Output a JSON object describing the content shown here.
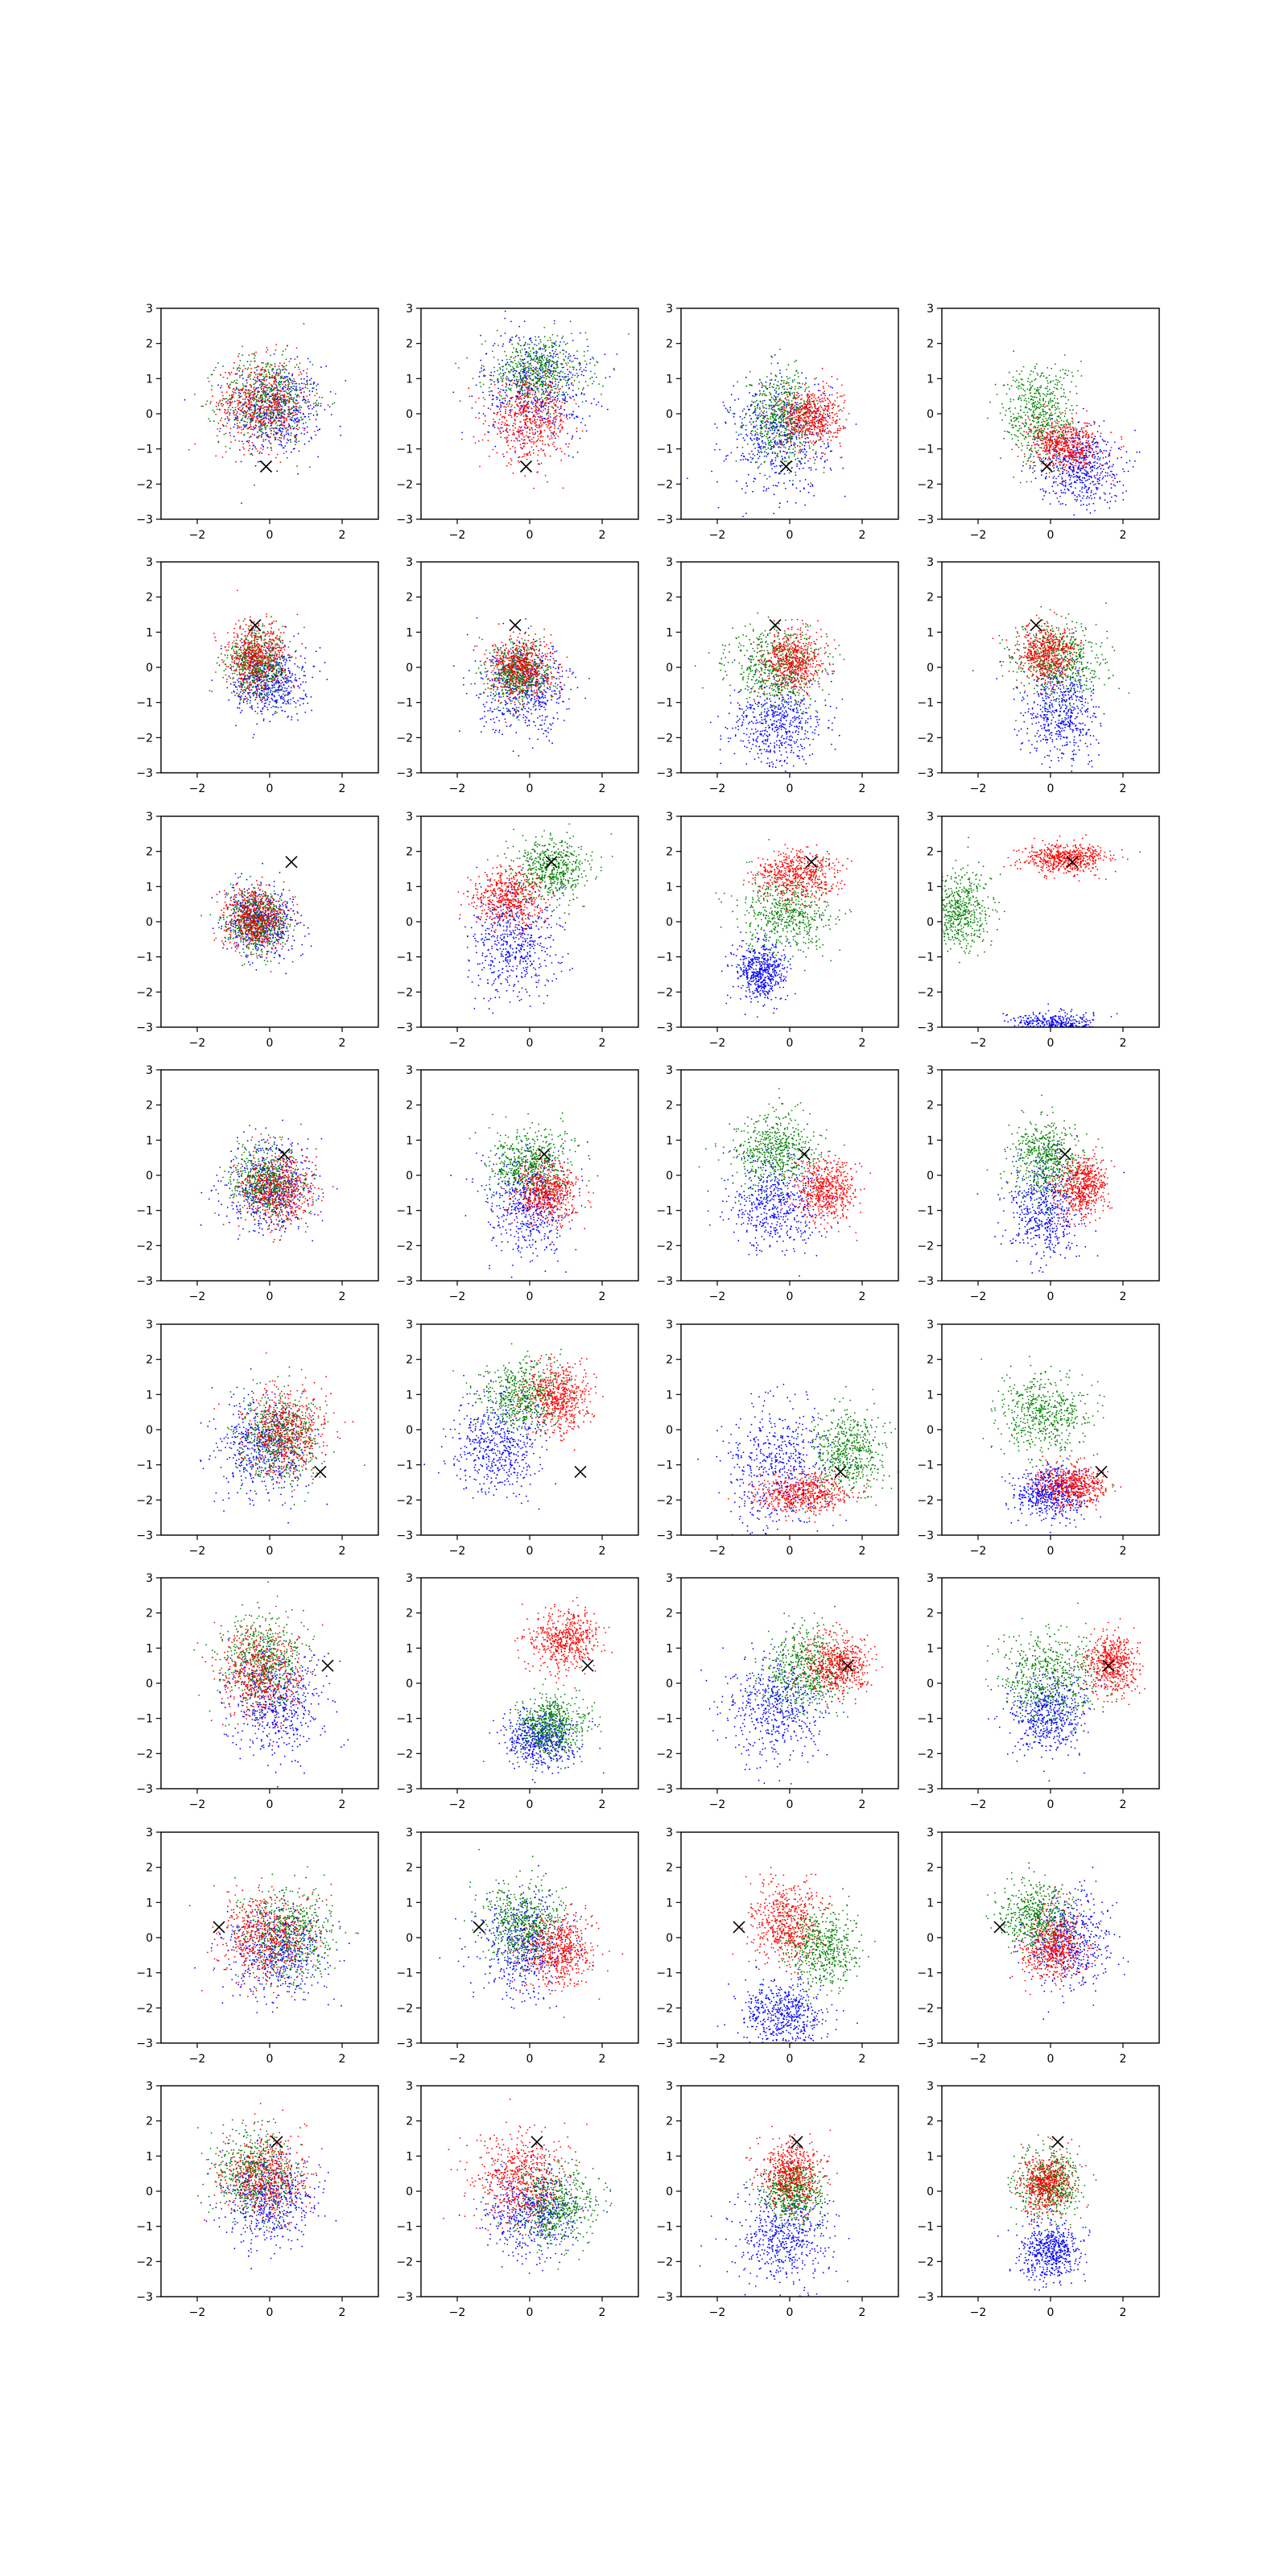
{
  "chart_data": {
    "type": "scatter",
    "layout": {
      "rows": 8,
      "cols": 4
    },
    "xlim": [
      -3,
      3
    ],
    "ylim": [
      -3,
      3
    ],
    "x_ticks": [
      "−2",
      "0",
      "2"
    ],
    "y_ticks": [
      "−3",
      "−2",
      "−1",
      "0",
      "1",
      "2",
      "3"
    ],
    "marker": {
      "symbol": "x",
      "color": "#000000"
    },
    "colors": {
      "blue": "#0000ff",
      "green": "#008000",
      "red": "#ff0000"
    },
    "rows": [
      {
        "marker": [
          -0.1,
          -1.5
        ],
        "panels": [
          {
            "blue": [
              0.2,
              0.1,
              0.9,
              0.9
            ],
            "green": [
              -0.1,
              0.4,
              0.9,
              0.9
            ],
            "red": [
              -0.2,
              0.3,
              0.9,
              0.9
            ]
          },
          {
            "blue": [
              0.2,
              0.8,
              1.1,
              1.1
            ],
            "green": [
              0.2,
              1.2,
              1.0,
              0.7
            ],
            "red": [
              0.0,
              -0.2,
              0.8,
              0.8
            ]
          },
          {
            "blue": [
              -0.3,
              -0.6,
              1.0,
              1.2
            ],
            "green": [
              -0.2,
              -0.1,
              0.7,
              0.9
            ],
            "red": [
              0.6,
              -0.1,
              0.6,
              0.6
            ]
          },
          {
            "blue": [
              0.8,
              -1.5,
              0.8,
              0.8
            ],
            "green": [
              -0.3,
              0.0,
              0.7,
              1.0
            ],
            "red": [
              0.4,
              -0.9,
              0.7,
              0.5
            ]
          }
        ]
      },
      {
        "marker": [
          -0.4,
          1.2
        ],
        "panels": [
          {
            "blue": [
              0.0,
              -0.4,
              0.7,
              0.7
            ],
            "green": [
              -0.3,
              0.1,
              0.6,
              0.7
            ],
            "red": [
              -0.4,
              0.3,
              0.6,
              0.7
            ]
          },
          {
            "blue": [
              -0.1,
              -0.6,
              0.9,
              0.9
            ],
            "green": [
              -0.3,
              -0.2,
              0.6,
              0.6
            ],
            "red": [
              -0.2,
              0.0,
              0.6,
              0.6
            ]
          },
          {
            "blue": [
              -0.3,
              -1.6,
              0.9,
              0.9
            ],
            "green": [
              -0.4,
              0.0,
              0.9,
              0.8
            ],
            "red": [
              0.1,
              0.2,
              0.6,
              0.6
            ]
          },
          {
            "blue": [
              0.3,
              -1.3,
              0.7,
              1.0
            ],
            "green": [
              0.2,
              0.1,
              0.9,
              0.8
            ],
            "red": [
              -0.1,
              0.4,
              0.6,
              0.6
            ]
          }
        ]
      },
      {
        "marker": [
          0.6,
          1.7
        ],
        "panels": [
          {
            "blue": [
              -0.2,
              0.0,
              0.7,
              0.7
            ],
            "green": [
              -0.4,
              0.0,
              0.6,
              0.6
            ],
            "red": [
              -0.4,
              0.1,
              0.6,
              0.6
            ]
          },
          {
            "blue": [
              -0.4,
              -0.6,
              0.9,
              1.1
            ],
            "green": [
              0.6,
              1.5,
              0.7,
              0.6
            ],
            "red": [
              -0.6,
              0.7,
              0.7,
              0.6
            ]
          },
          {
            "blue": [
              -0.8,
              -1.4,
              0.5,
              0.6
            ],
            "green": [
              -0.1,
              0.2,
              0.9,
              0.8
            ],
            "red": [
              0.2,
              1.3,
              0.8,
              0.5
            ]
          },
          {
            "blue": [
              0.0,
              -3.0,
              0.8,
              0.3
            ],
            "green": [
              -2.5,
              0.3,
              0.6,
              0.8
            ],
            "red": [
              0.4,
              1.8,
              0.8,
              0.3
            ]
          }
        ]
      },
      {
        "marker": [
          0.4,
          0.6
        ],
        "panels": [
          {
            "blue": [
              0.0,
              -0.3,
              0.9,
              0.9
            ],
            "green": [
              -0.1,
              -0.2,
              0.7,
              0.7
            ],
            "red": [
              0.2,
              -0.4,
              0.7,
              0.7
            ]
          },
          {
            "blue": [
              0.0,
              -0.8,
              0.8,
              1.0
            ],
            "green": [
              0.0,
              0.3,
              0.8,
              0.7
            ],
            "red": [
              0.5,
              -0.5,
              0.6,
              0.6
            ]
          },
          {
            "blue": [
              -0.4,
              -0.8,
              0.9,
              1.0
            ],
            "green": [
              -0.4,
              0.7,
              0.8,
              0.7
            ],
            "red": [
              1.0,
              -0.5,
              0.6,
              0.6
            ]
          },
          {
            "blue": [
              -0.1,
              -1.0,
              0.7,
              1.0
            ],
            "green": [
              -0.1,
              0.5,
              0.7,
              0.8
            ],
            "red": [
              0.9,
              -0.3,
              0.5,
              0.6
            ]
          }
        ]
      },
      {
        "marker": [
          1.4,
          -1.2
        ],
        "panels": [
          {
            "blue": [
              -0.2,
              -0.5,
              0.9,
              1.0
            ],
            "green": [
              0.3,
              -0.2,
              0.8,
              0.9
            ],
            "red": [
              0.5,
              0.0,
              0.8,
              0.9
            ]
          },
          {
            "blue": [
              -0.9,
              -0.5,
              0.9,
              1.0
            ],
            "green": [
              -0.2,
              1.0,
              0.8,
              0.7
            ],
            "red": [
              0.8,
              0.9,
              0.6,
              0.7
            ]
          },
          {
            "blue": [
              -0.3,
              -1.0,
              1.0,
              1.2
            ],
            "green": [
              1.6,
              -0.6,
              0.7,
              0.8
            ],
            "red": [
              0.4,
              -1.8,
              0.9,
              0.4
            ]
          },
          {
            "blue": [
              0.0,
              -1.8,
              0.7,
              0.5
            ],
            "green": [
              -0.2,
              0.4,
              0.9,
              0.8
            ],
            "red": [
              0.6,
              -1.6,
              0.7,
              0.4
            ]
          }
        ]
      },
      {
        "marker": [
          1.6,
          0.5
        ],
        "panels": [
          {
            "blue": [
              0.2,
              -0.6,
              0.9,
              1.0
            ],
            "green": [
              -0.2,
              0.6,
              0.8,
              0.9
            ],
            "red": [
              -0.3,
              0.3,
              0.8,
              0.9
            ]
          },
          {
            "blue": [
              0.3,
              -1.6,
              0.7,
              0.6
            ],
            "green": [
              0.6,
              -1.2,
              0.7,
              0.6
            ],
            "red": [
              1.0,
              1.2,
              0.7,
              0.6
            ]
          },
          {
            "blue": [
              -0.4,
              -0.7,
              1.0,
              1.1
            ],
            "green": [
              0.5,
              0.4,
              0.8,
              0.8
            ],
            "red": [
              1.3,
              0.5,
              0.6,
              0.6
            ]
          },
          {
            "blue": [
              -0.1,
              -0.9,
              0.8,
              0.8
            ],
            "green": [
              0.0,
              0.2,
              0.9,
              0.9
            ],
            "red": [
              1.7,
              0.5,
              0.5,
              0.6
            ]
          }
        ]
      },
      {
        "marker": [
          -1.4,
          0.3
        ],
        "panels": [
          {
            "blue": [
              0.2,
              -0.4,
              1.0,
              0.9
            ],
            "green": [
              0.5,
              0.1,
              0.9,
              0.9
            ],
            "red": [
              -0.1,
              0.0,
              0.9,
              0.9
            ]
          },
          {
            "blue": [
              -0.1,
              -0.2,
              0.9,
              1.0
            ],
            "green": [
              -0.2,
              0.4,
              0.8,
              0.8
            ],
            "red": [
              0.8,
              -0.4,
              0.7,
              0.7
            ]
          },
          {
            "blue": [
              -0.2,
              -2.2,
              0.8,
              0.7
            ],
            "green": [
              0.9,
              -0.3,
              0.7,
              0.8
            ],
            "red": [
              -0.1,
              0.4,
              0.7,
              0.8
            ]
          },
          {
            "blue": [
              0.5,
              -0.1,
              0.8,
              0.9
            ],
            "green": [
              -0.4,
              0.6,
              0.7,
              0.7
            ],
            "red": [
              0.1,
              -0.3,
              0.6,
              0.7
            ]
          }
        ]
      },
      {
        "marker": [
          0.2,
          1.4
        ],
        "panels": [
          {
            "blue": [
              0.0,
              -0.2,
              0.9,
              0.9
            ],
            "green": [
              -0.4,
              0.5,
              0.8,
              0.9
            ],
            "red": [
              -0.2,
              0.4,
              0.8,
              0.9
            ]
          },
          {
            "blue": [
              0.1,
              -0.6,
              0.9,
              0.9
            ],
            "green": [
              0.7,
              -0.4,
              0.8,
              0.8
            ],
            "red": [
              -0.3,
              0.4,
              0.9,
              0.9
            ]
          },
          {
            "blue": [
              -0.2,
              -1.3,
              0.9,
              1.0
            ],
            "green": [
              0.1,
              0.0,
              0.6,
              0.6
            ],
            "red": [
              0.0,
              0.5,
              0.6,
              0.7
            ]
          },
          {
            "blue": [
              0.0,
              -1.7,
              0.6,
              0.6
            ],
            "green": [
              0.0,
              0.2,
              0.6,
              0.7
            ],
            "red": [
              -0.1,
              0.2,
              0.5,
              0.6
            ]
          }
        ]
      }
    ]
  }
}
